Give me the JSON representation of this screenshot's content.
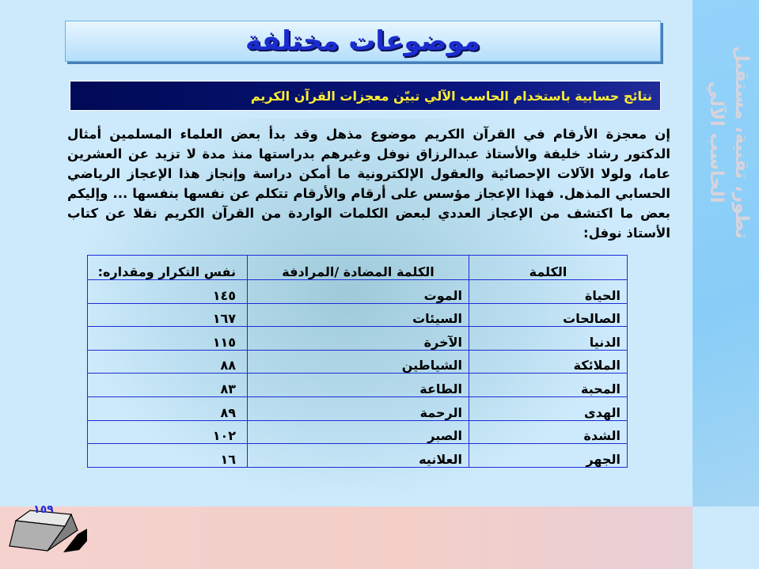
{
  "slide": {
    "title": "موضوعات مختلفة",
    "subtitle": "نتائج حسابية باستخدام الحاسب الآلي تبيّن معجزات القرآن الكريم",
    "paragraph": "إن معجزة الأرقام في القرآن الكريم موضوع مذهل وقد بدأ بعض العلماء المسلمين أمثال الدكتور رشاد خليفة والأستاذ عبدالرزاق نوفل وغيرهم بدراستها منذ مدة لا تزيد عن العشرين عاما، ولولا الآلات الإحصائية والعقول الإلكترونية ما أمكن دراسة وإنجاز هذا الإعجاز الرياضي الحسابي المذهل. فهذا الإعجاز مؤسس على أرقام والأرقام تتكلم عن نفسها بنفسها ... وإليكم بعض ما اكتشف من الإعجاز العددي لبعض الكلمات الواردة من القرآن الكريم نقلا عن كتاب الأستاذ نوفل:",
    "side_title_1": "الحاسب الآلي",
    "side_title_2": "تطور، تقنية، مستقبل",
    "page_number": "١٥٩"
  },
  "table": {
    "headers": [
      "الكلمة",
      "الكلمة المضادة /المرادفة",
      "نفس التكرار ومقداره:"
    ],
    "rows": [
      [
        "الحياة",
        "الموت",
        "١٤٥"
      ],
      [
        "الصالحات",
        "السيئات",
        "١٦٧"
      ],
      [
        "الدنيا",
        "الآخرة",
        "١١٥"
      ],
      [
        "الملائكة",
        "الشياطين",
        "٨٨"
      ],
      [
        "المحبة",
        "الطاعة",
        "٨٣"
      ],
      [
        "الهدى",
        "الرحمة",
        "٨٩"
      ],
      [
        "الشدة",
        "الصبر",
        "١٠٢"
      ],
      [
        "الجهر",
        "العلانيه",
        "١٦"
      ]
    ]
  },
  "colors": {
    "title_text": "#1a2ccf",
    "subtitle_bg": "#000a55",
    "subtitle_text": "#ffee33",
    "table_border": "#1c2cd8"
  }
}
